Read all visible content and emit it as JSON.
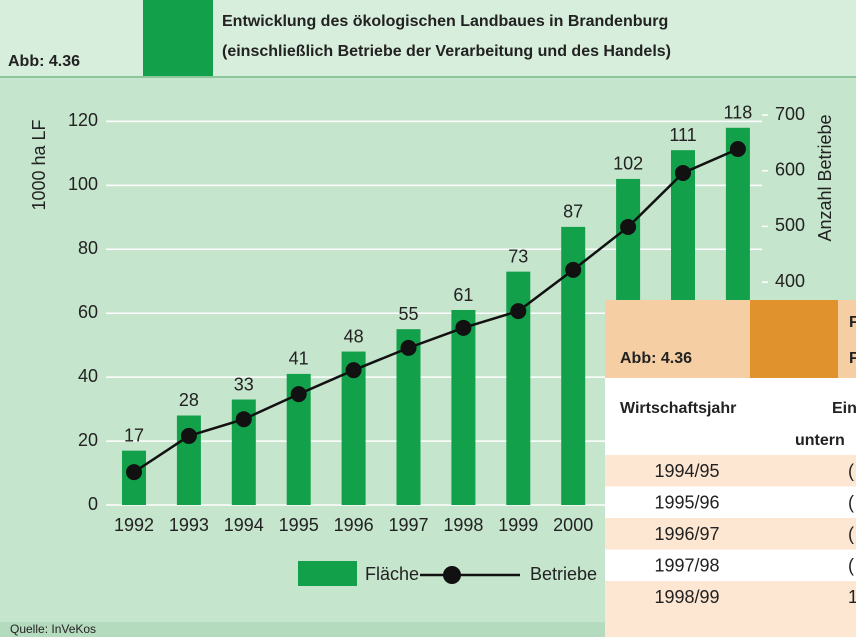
{
  "abb": "Abb: 4.36",
  "chart_data": {
    "type": "bar",
    "title": [
      "Entwicklung des ökologischen Landbaues in Brandenburg",
      "(einschließlich Betriebe der Verarbeitung und des Handels)"
    ],
    "y_label": "1000 ha LF",
    "y2_label": "Anzahl Betriebe",
    "categories": [
      "1992",
      "1993",
      "1994",
      "1995",
      "1996",
      "1997",
      "1998",
      "1999",
      "2000",
      null,
      null,
      null
    ],
    "series": [
      {
        "name": "Fläche",
        "type": "bar",
        "color": "#12a04a",
        "values": [
          17,
          28,
          33,
          41,
          48,
          55,
          61,
          73,
          87,
          102,
          111,
          118
        ]
      },
      {
        "name": "Betriebe",
        "type": "line",
        "axis": "y2",
        "color": "#111111",
        "values": [
          59,
          124,
          154,
          199,
          242,
          282,
          318,
          348,
          422,
          499,
          596,
          639
        ]
      }
    ],
    "ylim": [
      0,
      122
    ],
    "yticks": [
      0,
      20,
      40,
      60,
      80,
      100,
      120
    ],
    "y2lim": [
      0,
      700
    ],
    "y2ticks": [
      400,
      500,
      600,
      700
    ],
    "grid": true,
    "source": "Quelle: InVeKos"
  },
  "table": {
    "abb": "Abb: 4.36",
    "title": [
      "F",
      "F"
    ],
    "header": [
      "Wirtschaftsjahr",
      "Ein",
      "untern"
    ],
    "rows": [
      [
        "1994/95",
        "("
      ],
      [
        "1995/96",
        "("
      ],
      [
        "1996/97",
        "("
      ],
      [
        "1997/98",
        "("
      ],
      [
        "1998/99",
        "1"
      ]
    ]
  }
}
